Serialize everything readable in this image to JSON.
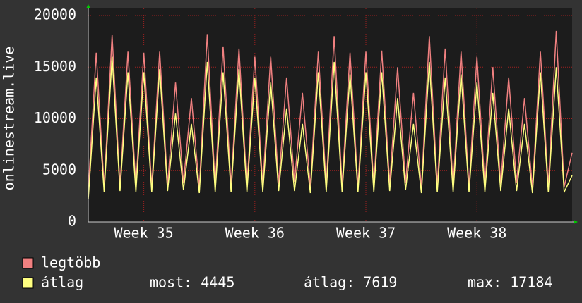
{
  "chart_data": {
    "type": "line",
    "y_label": "onlinestream.live",
    "categories": [
      null,
      null,
      null,
      null,
      null,
      null,
      null,
      "Week 35",
      null,
      null,
      null,
      null,
      null,
      null,
      null,
      null,
      null,
      null,
      null,
      null,
      null,
      "Week 36",
      null,
      null,
      null,
      null,
      null,
      null,
      null,
      null,
      null,
      null,
      null,
      null,
      null,
      "Week 37",
      null,
      null,
      null,
      null,
      null,
      null,
      null,
      null,
      null,
      null,
      null,
      null,
      null,
      "Week 38",
      null,
      null,
      null,
      null,
      null,
      null,
      null,
      null,
      null,
      null,
      null,
      null
    ],
    "series": [
      {
        "name": "legtöbb",
        "color": "#f08080",
        "values": [
          3000,
          16400,
          3400,
          18100,
          3500,
          16500,
          3500,
          16400,
          3400,
          16500,
          3600,
          13500,
          3800,
          12000,
          3300,
          18200,
          3500,
          17000,
          3500,
          16800,
          3400,
          16000,
          3500,
          16000,
          3700,
          14000,
          3900,
          12500,
          3400,
          16500,
          3500,
          18000,
          3500,
          16400,
          3400,
          16500,
          3500,
          16600,
          3700,
          15000,
          3800,
          12500,
          3300,
          18000,
          3500,
          16800,
          3500,
          16500,
          3400,
          16000,
          3500,
          15000,
          3700,
          14000,
          3800,
          12000,
          3300,
          16500,
          3500,
          18500,
          3400,
          6700
        ]
      },
      {
        "name": "átlag",
        "color": "#ffff80",
        "values": [
          2200,
          14000,
          2900,
          16000,
          3000,
          14500,
          2900,
          14500,
          2900,
          14800,
          3000,
          10500,
          3100,
          9500,
          2800,
          15500,
          2900,
          14500,
          2900,
          14800,
          2900,
          14000,
          2900,
          13500,
          3000,
          11000,
          3000,
          9500,
          2800,
          14500,
          2900,
          15500,
          2900,
          14300,
          2900,
          14500,
          2900,
          14500,
          3000,
          12000,
          3100,
          9500,
          2800,
          15500,
          2900,
          14000,
          2900,
          14300,
          2900,
          13500,
          2900,
          12500,
          3000,
          11000,
          3000,
          9500,
          2800,
          14500,
          2900,
          15000,
          2900,
          4500
        ]
      }
    ],
    "stats": [
      "most: 4445",
      "átlag: 7619",
      "max: 17184"
    ],
    "ylim": [
      0,
      20000
    ],
    "yticks": [
      0,
      5000,
      10000,
      15000,
      20000
    ],
    "grid": true
  }
}
